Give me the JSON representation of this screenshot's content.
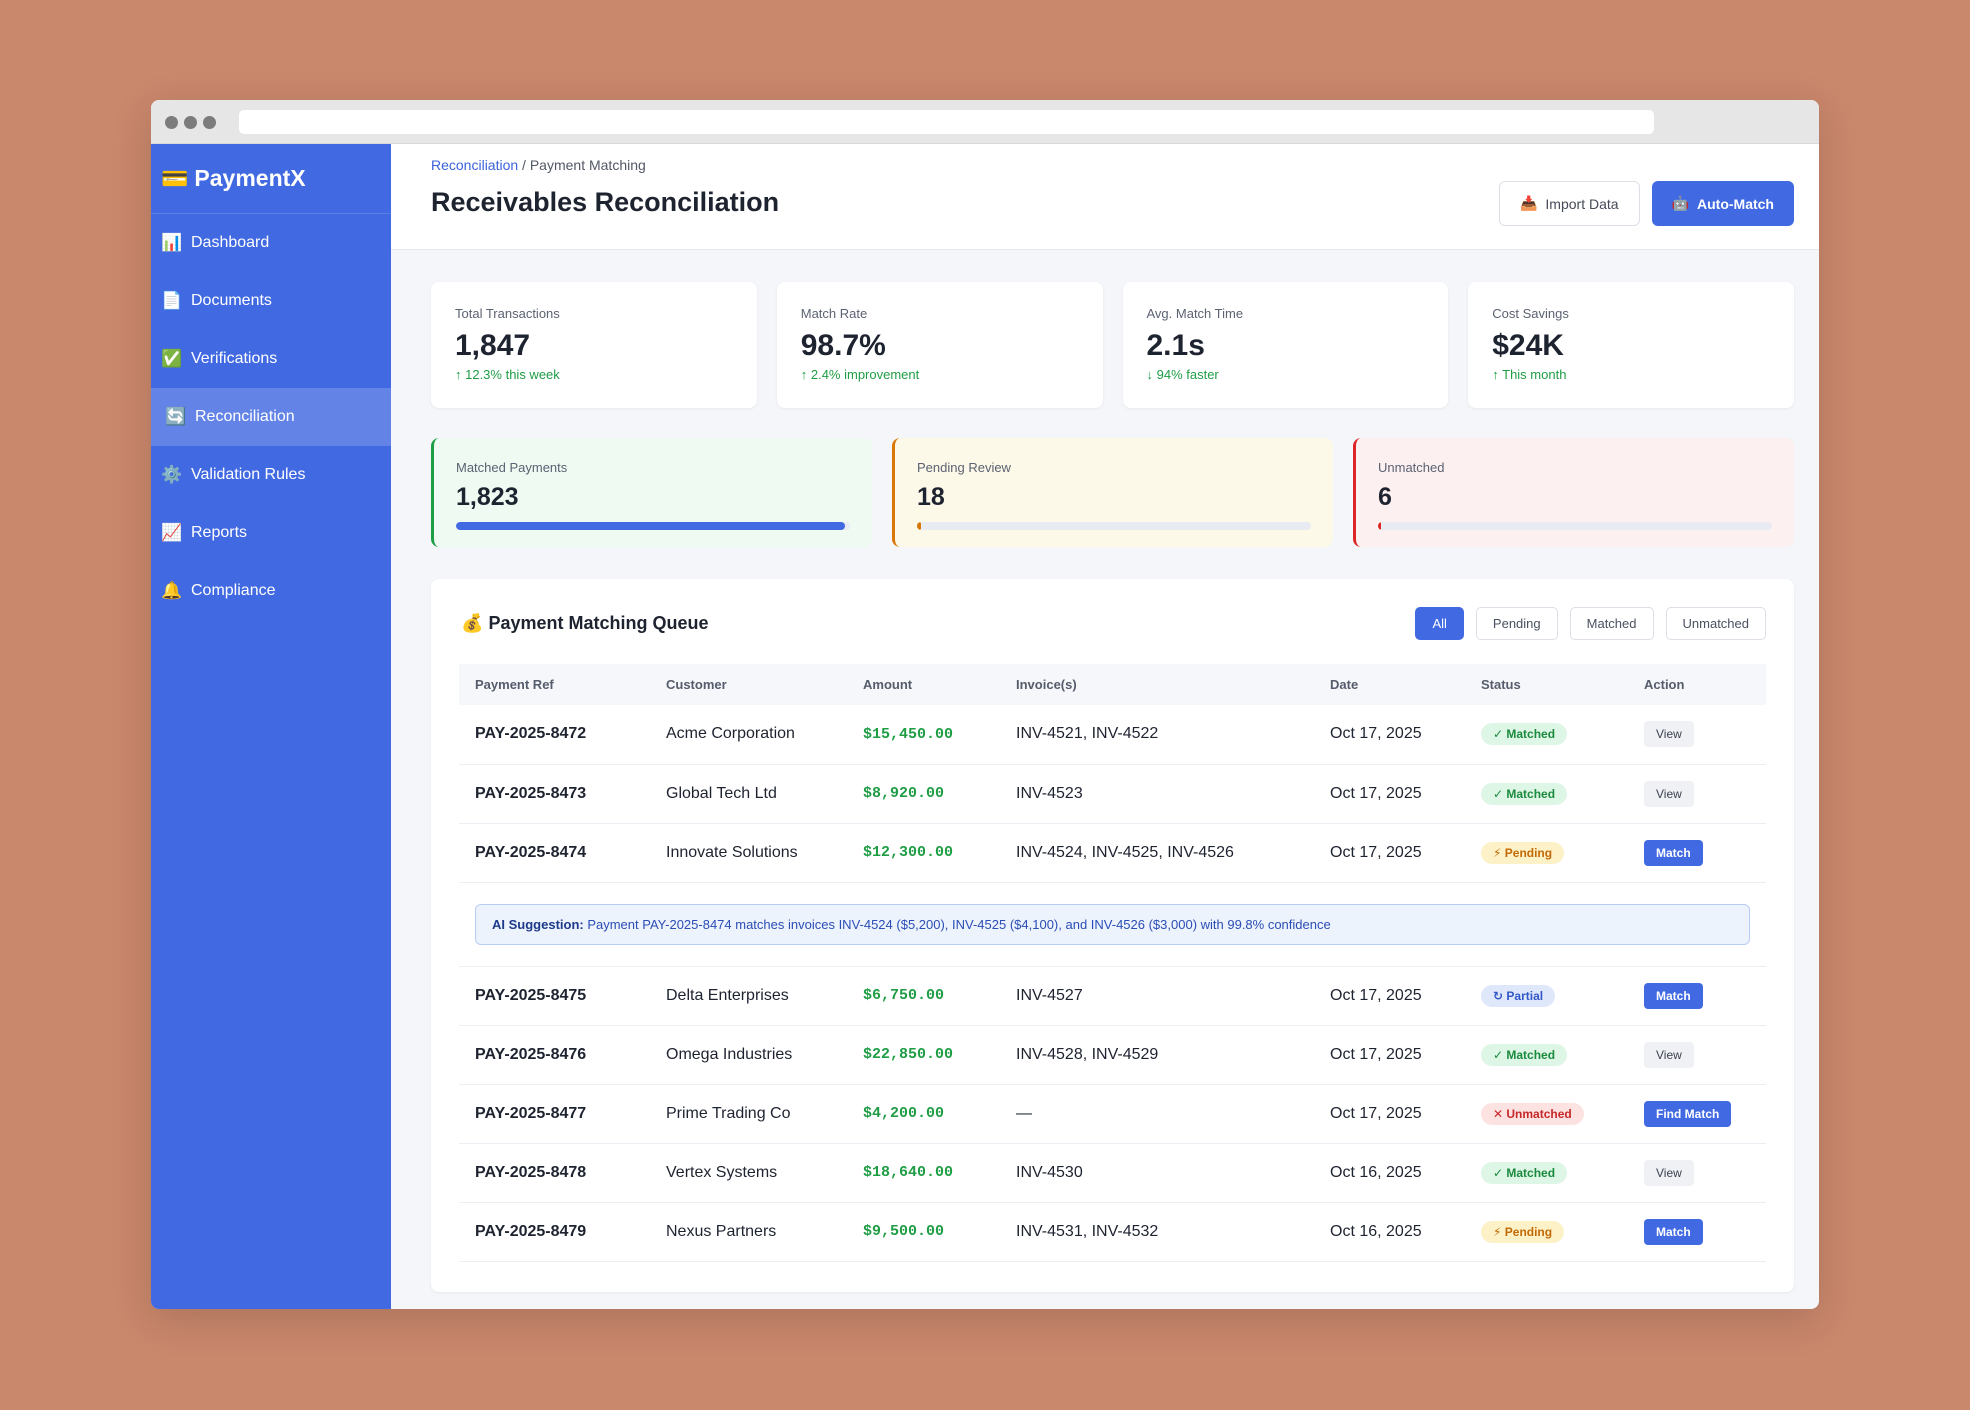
{
  "brand": {
    "icon": "💳",
    "name": "PaymentX"
  },
  "nav": [
    {
      "icon": "📊",
      "label": "Dashboard"
    },
    {
      "icon": "📄",
      "label": "Documents"
    },
    {
      "icon": "✅",
      "label": "Verifications"
    },
    {
      "icon": "🔄",
      "label": "Reconciliation"
    },
    {
      "icon": "⚙️",
      "label": "Validation Rules"
    },
    {
      "icon": "📈",
      "label": "Reports"
    },
    {
      "icon": "🔔",
      "label": "Compliance"
    }
  ],
  "header": {
    "breadcrumb_link": "Reconciliation",
    "breadcrumb_rest": " / Payment Matching",
    "title": "Receivables Reconciliation",
    "buttons": [
      {
        "icon": "📥",
        "label": "Import Data"
      },
      {
        "icon": "🤖",
        "label": "Auto-Match"
      }
    ]
  },
  "stats": [
    {
      "label": "Total Transactions",
      "value": "1,847",
      "delta": "↑ 12.3% this week"
    },
    {
      "label": "Match Rate",
      "value": "98.7%",
      "delta": "↑ 2.4% improvement"
    },
    {
      "label": "Avg. Match Time",
      "value": "2.1s",
      "delta": "↓ 94% faster"
    },
    {
      "label": "Cost Savings",
      "value": "$24K",
      "delta": "↑ This month"
    }
  ],
  "progress": [
    {
      "label": "Matched Payments",
      "value": "1,823"
    },
    {
      "label": "Pending Review",
      "value": "18"
    },
    {
      "label": "Unmatched",
      "value": "6"
    }
  ],
  "queue": {
    "icon": "💰",
    "title": "Payment Matching Queue",
    "filters": [
      "All",
      "Pending",
      "Matched",
      "Unmatched"
    ]
  },
  "table": {
    "columns": [
      "Payment Ref",
      "Customer",
      "Amount",
      "Invoice(s)",
      "Date",
      "Status",
      "Action"
    ],
    "rows": [
      [
        "PAY-2025-8472",
        "Acme Corporation",
        "$15,450.00",
        "INV-4521, INV-4522",
        "Oct 17, 2025",
        "✓ Matched",
        "View"
      ],
      [
        "PAY-2025-8473",
        "Global Tech Ltd",
        "$8,920.00",
        "INV-4523",
        "Oct 17, 2025",
        "✓ Matched",
        "View"
      ],
      [
        "PAY-2025-8474",
        "Innovate Solutions",
        "$12,300.00",
        "INV-4524, INV-4525, INV-4526",
        "Oct 17, 2025",
        "⚡ Pending",
        "Match"
      ],
      [
        "PAY-2025-8475",
        "Delta Enterprises",
        "$6,750.00",
        "INV-4527",
        "Oct 17, 2025",
        "↻ Partial",
        "Match"
      ],
      [
        "PAY-2025-8476",
        "Omega Industries",
        "$22,850.00",
        "INV-4528, INV-4529",
        "Oct 17, 2025",
        "✓ Matched",
        "View"
      ],
      [
        "PAY-2025-8477",
        "Prime Trading Co",
        "$4,200.00",
        "—",
        "Oct 17, 2025",
        "✕ Unmatched",
        "Find Match"
      ],
      [
        "PAY-2025-8478",
        "Vertex Systems",
        "$18,640.00",
        "INV-4530",
        "Oct 16, 2025",
        "✓ Matched",
        "View"
      ],
      [
        "PAY-2025-8479",
        "Nexus Partners",
        "$9,500.00",
        "INV-4531, INV-4532",
        "Oct 16, 2025",
        "⚡ Pending",
        "Match"
      ]
    ],
    "ai_suggestion": {
      "label": "AI Suggestion:",
      "text": " Payment PAY-2025-8474 matches invoices INV-4524 ($5,200), INV-4525 ($4,100), and INV-4526 ($3,000) with 99.8% confidence"
    }
  }
}
